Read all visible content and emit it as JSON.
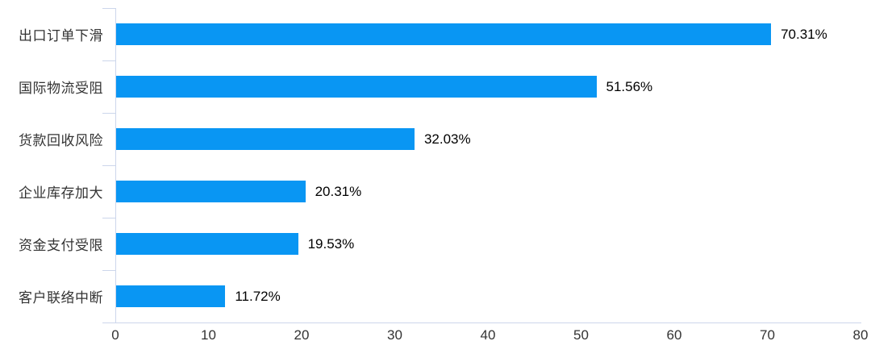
{
  "chart_data": {
    "type": "bar",
    "orientation": "horizontal",
    "title": "",
    "xlabel": "",
    "ylabel": "",
    "categories": [
      "出口订单下滑",
      "国际物流受阻",
      "货款回收风险",
      "企业库存加大",
      "资金支付受限",
      "客户联络中断"
    ],
    "values": [
      70.31,
      51.56,
      32.03,
      20.31,
      19.53,
      11.72
    ],
    "value_labels": [
      "70.31%",
      "51.56%",
      "32.03%",
      "20.31%",
      "19.53%",
      "11.72%"
    ],
    "xlim": [
      0,
      80
    ],
    "x_ticks": [
      0,
      10,
      20,
      30,
      40,
      50,
      60,
      70,
      80
    ],
    "grid": false,
    "legend": null,
    "bar_color": "#0996F3",
    "axis_color": "#CCD6EB",
    "category_label_color": "#333333",
    "value_label_color": "#000000"
  }
}
